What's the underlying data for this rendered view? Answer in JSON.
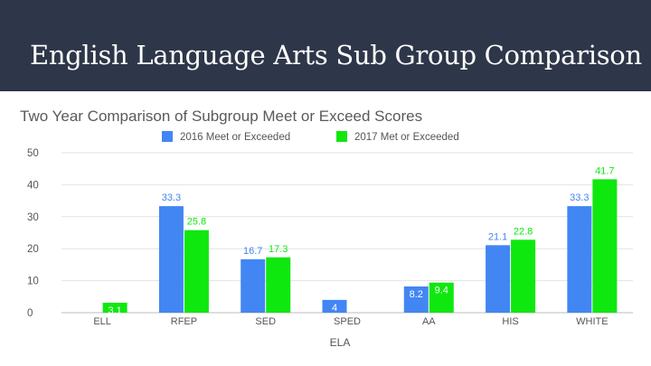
{
  "slide": {
    "title": "English Language Arts Sub Group Comparison",
    "banner_color": "#2e3649"
  },
  "chart_data": {
    "type": "bar",
    "title": "Two Year Comparison of Subgroup  Meet or Exceed Scores",
    "xlabel": "ELA",
    "ylabel": "",
    "ylim": [
      0,
      50
    ],
    "yticks": [
      0,
      10,
      20,
      30,
      40,
      50
    ],
    "grid": true,
    "legend_position": "top",
    "categories": [
      "ELL",
      "RFEP",
      "SED",
      "SPED",
      "AA",
      "HIS",
      "WHITE"
    ],
    "series": [
      {
        "name": "2016 Meet or Exceeded",
        "color": "#4286f4",
        "values": [
          null,
          33.3,
          16.7,
          4,
          8.2,
          21.1,
          33.3
        ],
        "labels": [
          "",
          "33.3",
          "16.7",
          "4",
          "8.2",
          "21.1",
          "33.3"
        ]
      },
      {
        "name": "2017 Met or Exceeded",
        "color": "#0fe80f",
        "values": [
          3.1,
          25.8,
          17.3,
          null,
          9.4,
          22.8,
          41.7
        ],
        "labels": [
          "3.1",
          "25.8",
          "17.3",
          "",
          "9.4",
          "22.8",
          "41.7"
        ]
      }
    ]
  }
}
